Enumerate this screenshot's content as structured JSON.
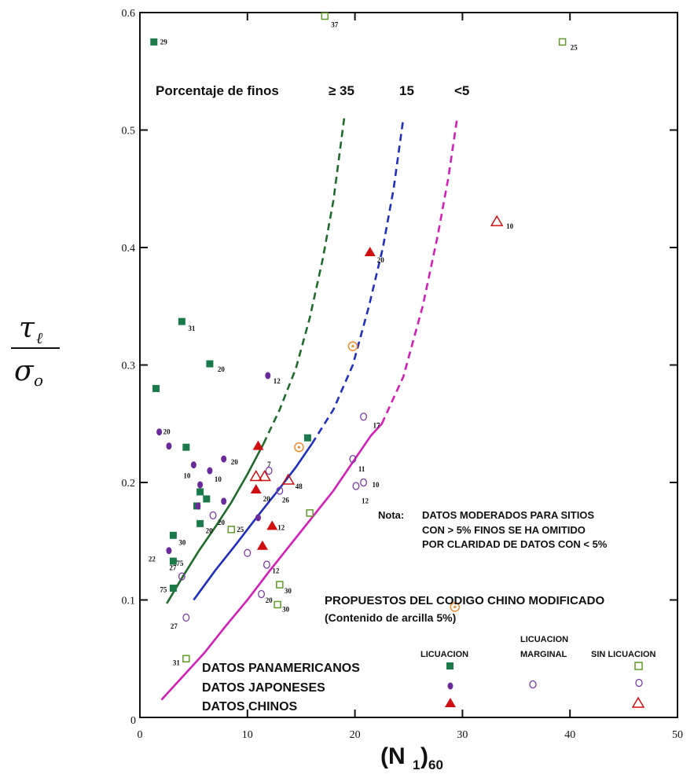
{
  "chart_data": {
    "type": "scatter",
    "title": "",
    "xlabel": "(N1)60",
    "xlabel_main": "(N",
    "xlabel_sub1": "1",
    "xlabel_close": ")",
    "xlabel_sub2": "60",
    "ylabel_numerator": "τ",
    "ylabel_numerator_sub": "ℓ",
    "ylabel_denominator": "σ",
    "ylabel_denominator_sub": "o",
    "xlim": [
      0,
      50
    ],
    "ylim": [
      0,
      0.6
    ],
    "x_ticks": [
      0,
      10,
      20,
      30,
      40,
      50
    ],
    "x_tick_labels": [
      "0",
      "10",
      "20",
      "30",
      "40",
      "50"
    ],
    "y_ticks": [
      0.1,
      0.2,
      0.3,
      0.4,
      0.5,
      0.6
    ],
    "y_tick_labels": [
      "0.1",
      "0.2",
      "0.3",
      "0.4",
      "0.5",
      "0.6"
    ],
    "y_zero_label": "0",
    "fines_title": "Porcentaje de finos",
    "curves": [
      {
        "label": "≥ 35",
        "color": "#1e6b2a",
        "solid": [
          [
            2.5,
            0.097
          ],
          [
            4,
            0.12
          ],
          [
            5.5,
            0.142
          ],
          [
            7,
            0.162
          ],
          [
            8.5,
            0.183
          ],
          [
            10,
            0.207
          ],
          [
            11.5,
            0.233
          ]
        ],
        "dashed": [
          [
            11.5,
            0.233
          ],
          [
            13,
            0.262
          ],
          [
            14.5,
            0.297
          ],
          [
            15.8,
            0.34
          ],
          [
            17,
            0.39
          ],
          [
            18,
            0.44
          ],
          [
            19,
            0.51
          ]
        ]
      },
      {
        "label": "15",
        "color": "#1f2fbf",
        "solid": [
          [
            5,
            0.1
          ],
          [
            7,
            0.125
          ],
          [
            9,
            0.148
          ],
          [
            11,
            0.172
          ],
          [
            13,
            0.195
          ],
          [
            14.5,
            0.213
          ],
          [
            16,
            0.233
          ]
        ],
        "dashed": [
          [
            16,
            0.233
          ],
          [
            18,
            0.262
          ],
          [
            19.8,
            0.3
          ],
          [
            21.3,
            0.35
          ],
          [
            22.6,
            0.4
          ],
          [
            23.6,
            0.45
          ],
          [
            24.5,
            0.51
          ]
        ]
      },
      {
        "label": "<5",
        "color": "#d21fb8",
        "solid": [
          [
            2,
            0.015
          ],
          [
            4,
            0.035
          ],
          [
            6,
            0.055
          ],
          [
            8,
            0.078
          ],
          [
            10,
            0.1
          ],
          [
            12,
            0.124
          ],
          [
            14,
            0.147
          ],
          [
            16,
            0.17
          ],
          [
            18,
            0.193
          ],
          [
            20,
            0.22
          ],
          [
            21.5,
            0.24
          ],
          [
            22.5,
            0.25
          ]
        ],
        "dashed": [
          [
            22.5,
            0.25
          ],
          [
            24.5,
            0.29
          ],
          [
            26.3,
            0.35
          ],
          [
            27.7,
            0.41
          ],
          [
            28.7,
            0.46
          ],
          [
            29.5,
            0.51
          ]
        ]
      }
    ],
    "series": [
      {
        "name": "DATOS PANAMERICANOS",
        "category": "LICUACION",
        "marker": "square-filled",
        "color": "#1a7a4a",
        "points": [
          [
            1.3,
            0.575
          ],
          [
            1.5,
            0.28
          ],
          [
            3.9,
            0.337
          ],
          [
            6.5,
            0.301
          ],
          [
            4.3,
            0.23
          ],
          [
            5.6,
            0.192
          ],
          [
            6.2,
            0.186
          ],
          [
            5.3,
            0.18
          ],
          [
            5.6,
            0.165
          ],
          [
            3.1,
            0.155
          ],
          [
            3.1,
            0.133
          ],
          [
            3.1,
            0.11
          ],
          [
            15.6,
            0.238
          ]
        ]
      },
      {
        "name": "DATOS PANAMERICANOS",
        "category": "SIN LICUACION",
        "marker": "square-open",
        "color": "#5f9a2a",
        "points": [
          [
            17.2,
            0.597
          ],
          [
            39.3,
            0.575
          ],
          [
            8.5,
            0.16
          ],
          [
            15.8,
            0.174
          ],
          [
            13,
            0.113
          ],
          [
            12.8,
            0.096
          ],
          [
            4.3,
            0.05
          ]
        ]
      },
      {
        "name": "DATOS JAPONESES",
        "category": "LICUACION",
        "marker": "circle-filled",
        "color": "#6a2a9a",
        "points": [
          [
            11.9,
            0.291
          ],
          [
            1.8,
            0.243
          ],
          [
            2.7,
            0.231
          ],
          [
            5,
            0.215
          ],
          [
            6.5,
            0.21
          ],
          [
            7.8,
            0.22
          ],
          [
            5.6,
            0.198
          ],
          [
            5.4,
            0.18
          ],
          [
            7.8,
            0.184
          ],
          [
            11,
            0.17
          ],
          [
            2.7,
            0.142
          ]
        ]
      },
      {
        "name": "DATOS JAPONESES",
        "category": "LICUACION MARGINAL",
        "marker": "circle-open",
        "color": "#7a3aa8",
        "points": [
          [
            20.8,
            0.256
          ],
          [
            19.8,
            0.22
          ],
          [
            20.1,
            0.197
          ],
          [
            20.8,
            0.2
          ],
          [
            12,
            0.21
          ],
          [
            13,
            0.193
          ],
          [
            6.8,
            0.172
          ],
          [
            10,
            0.14
          ],
          [
            11.8,
            0.13
          ],
          [
            11.3,
            0.105
          ],
          [
            3.9,
            0.12
          ],
          [
            4.3,
            0.085
          ]
        ]
      },
      {
        "name": "DATOS CHINOS",
        "category": "LICUACION",
        "marker": "triangle-filled",
        "color": "#d01010",
        "points": [
          [
            21.4,
            0.396
          ],
          [
            11,
            0.231
          ],
          [
            10.8,
            0.194
          ],
          [
            12.3,
            0.163
          ],
          [
            11.4,
            0.146
          ]
        ]
      },
      {
        "name": "DATOS CHINOS",
        "category": "SIN LICUACION",
        "marker": "triangle-open",
        "color": "#d01010",
        "points": [
          [
            33.2,
            0.422
          ],
          [
            10.8,
            0.205
          ],
          [
            11.6,
            0.205
          ],
          [
            13.8,
            0.202
          ]
        ]
      },
      {
        "name": "PROPUESTOS DEL CODIGO CHINO MODIFICADO",
        "category": "",
        "marker": "circle-dot",
        "color": "#f28a2a",
        "points": [
          [
            19.8,
            0.316
          ],
          [
            14.8,
            0.23
          ],
          [
            29.3,
            0.094
          ]
        ]
      }
    ],
    "point_labels": [
      {
        "x": 1.3,
        "y": 0.575,
        "text": "29",
        "dx": 8,
        "dy": 3
      },
      {
        "x": 17.2,
        "y": 0.597,
        "text": "37",
        "dx": 8,
        "dy": 14
      },
      {
        "x": 39.3,
        "y": 0.575,
        "text": "25",
        "dx": 10,
        "dy": 10
      },
      {
        "x": 33.2,
        "y": 0.422,
        "text": "10",
        "dx": 12,
        "dy": 9
      },
      {
        "x": 21.4,
        "y": 0.396,
        "text": "20",
        "dx": 9,
        "dy": 13
      },
      {
        "x": 3.9,
        "y": 0.337,
        "text": "31",
        "dx": 8,
        "dy": 12
      },
      {
        "x": 6.5,
        "y": 0.301,
        "text": "20",
        "dx": 10,
        "dy": 10
      },
      {
        "x": 11.9,
        "y": 0.291,
        "text": "12",
        "dx": 7,
        "dy": 10
      },
      {
        "x": 20.8,
        "y": 0.256,
        "text": "17",
        "dx": 12,
        "dy": 14
      },
      {
        "x": 1.8,
        "y": 0.243,
        "text": "20",
        "dx": 5,
        "dy": 3
      },
      {
        "x": 7.8,
        "y": 0.22,
        "text": "20",
        "dx": 9,
        "dy": 7
      },
      {
        "x": 5.0,
        "y": 0.215,
        "text": "10",
        "dx": -13,
        "dy": 17
      },
      {
        "x": 6.5,
        "y": 0.21,
        "text": "10",
        "dx": 6,
        "dy": 14
      },
      {
        "x": 19.8,
        "y": 0.22,
        "text": "11",
        "dx": 7,
        "dy": 16
      },
      {
        "x": 20.8,
        "y": 0.2,
        "text": "10",
        "dx": 11,
        "dy": 6
      },
      {
        "x": 20.1,
        "y": 0.197,
        "text": "12",
        "dx": 7,
        "dy": 22
      },
      {
        "x": 13.8,
        "y": 0.202,
        "text": "48",
        "dx": 9,
        "dy": 11
      },
      {
        "x": 12.0,
        "y": 0.21,
        "text": "7",
        "dx": -2,
        "dy": -5
      },
      {
        "x": 10.8,
        "y": 0.194,
        "text": "20",
        "dx": 9,
        "dy": 15
      },
      {
        "x": 13.0,
        "y": 0.193,
        "text": "26",
        "dx": 3,
        "dy": 15
      },
      {
        "x": 6.8,
        "y": 0.172,
        "text": "20",
        "dx": 6,
        "dy": 12
      },
      {
        "x": 5.6,
        "y": 0.165,
        "text": "20",
        "dx": 7,
        "dy": 12
      },
      {
        "x": 8.5,
        "y": 0.16,
        "text": "25",
        "dx": 7,
        "dy": 3
      },
      {
        "x": 12.3,
        "y": 0.163,
        "text": "12",
        "dx": 7,
        "dy": 5
      },
      {
        "x": 3.1,
        "y": 0.155,
        "text": "30",
        "dx": 7,
        "dy": 12
      },
      {
        "x": 2.7,
        "y": 0.142,
        "text": "22",
        "dx": -26,
        "dy": 14
      },
      {
        "x": 3.1,
        "y": 0.133,
        "text": "75",
        "dx": 4,
        "dy": 6
      },
      {
        "x": 3.1,
        "y": 0.128,
        "text": "27",
        "dx": -5,
        "dy": 4
      },
      {
        "x": 11.8,
        "y": 0.13,
        "text": "12",
        "dx": 7,
        "dy": 11
      },
      {
        "x": 13.0,
        "y": 0.113,
        "text": "30",
        "dx": 6,
        "dy": 11
      },
      {
        "x": 3.1,
        "y": 0.11,
        "text": "75",
        "dx": -17,
        "dy": 5
      },
      {
        "x": 11.3,
        "y": 0.105,
        "text": "20",
        "dx": 5,
        "dy": 11
      },
      {
        "x": 12.8,
        "y": 0.096,
        "text": "30",
        "dx": 6,
        "dy": 9
      },
      {
        "x": 4.3,
        "y": 0.085,
        "text": "27",
        "dx": -20,
        "dy": 14
      },
      {
        "x": 4.3,
        "y": 0.05,
        "text": "31",
        "dx": -17,
        "dy": 8
      }
    ],
    "annotations": {
      "nota": [
        "Nota:",
        "DATOS MODERADOS PARA SITIOS",
        "CON  > 5% FINOS SE HA  OMITIDO",
        "POR CLARIDAD DE DATOS CON < 5%"
      ],
      "propuestos": "PROPUESTOS DEL CODIGO CHINO MODIFICADO",
      "arcilla": "(Contenido de arcilla 5%)"
    },
    "legend": {
      "placement": "bottom-right",
      "col_headers": [
        "LICUACION",
        "LICUACION",
        "MARGINAL",
        "SIN LICUACION"
      ],
      "rows": [
        "DATOS PANAMERICANOS",
        "DATOS JAPONESES",
        "DATOS CHINOS"
      ]
    }
  }
}
